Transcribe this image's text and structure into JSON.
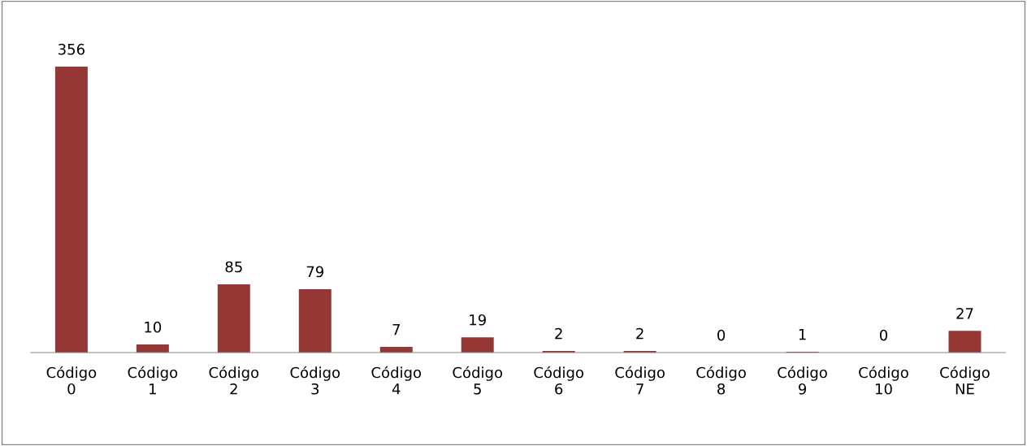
{
  "chart_data": {
    "type": "bar",
    "categories": [
      "Código 0",
      "Código 1",
      "Código 2",
      "Código 3",
      "Código 4",
      "Código 5",
      "Código 6",
      "Código 7",
      "Código 8",
      "Código 9",
      "Código 10",
      "Código NE"
    ],
    "values": [
      356,
      10,
      85,
      79,
      7,
      19,
      2,
      2,
      0,
      1,
      0,
      27
    ],
    "color": "#953735",
    "data_labels": true,
    "grid": false,
    "legend": false
  }
}
